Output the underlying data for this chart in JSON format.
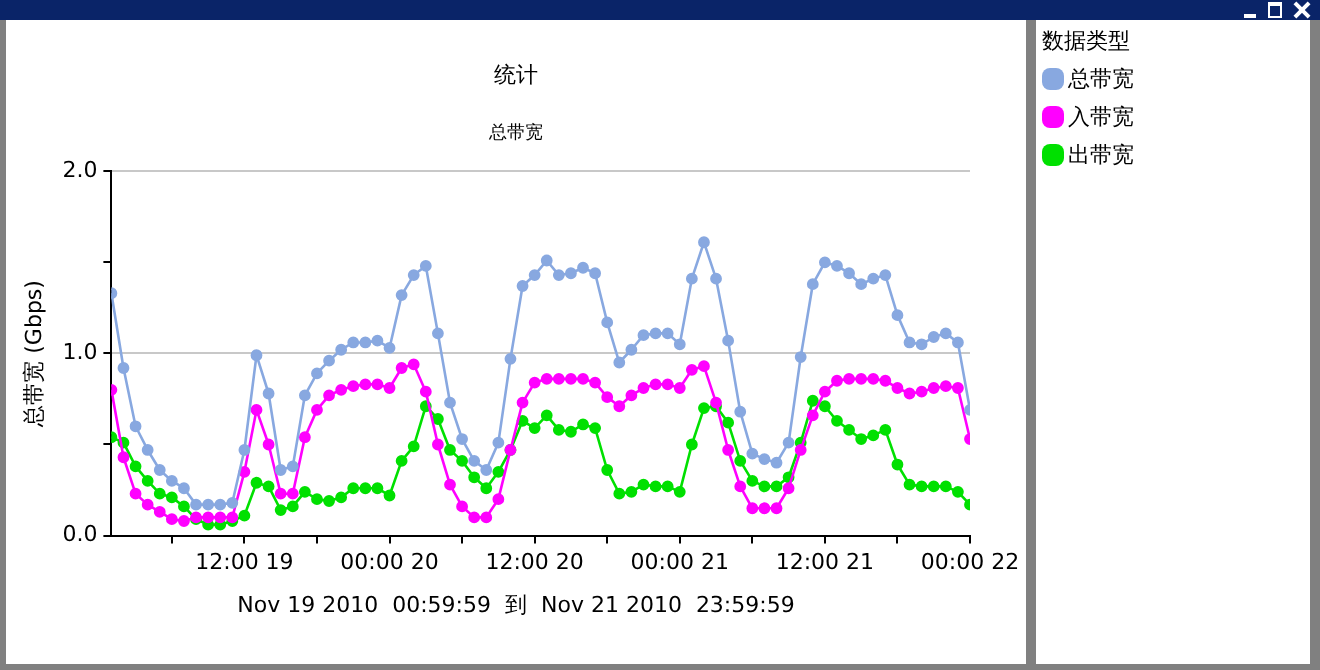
{
  "chart_data": {
    "type": "line",
    "title": "统计",
    "subtitle": "总带宽",
    "ylabel": "总带宽 (Gbps)",
    "xlabel": "Nov 19 2010  00:59:59  到  Nov 21 2010  23:59:59",
    "legend_title": "数据类型",
    "legend": "right",
    "grid": "y",
    "marker": "circle",
    "line_style": "solid",
    "xlim": [
      "2010-11-19T01:00",
      "2010-11-22T00:00"
    ],
    "xticks": [
      {
        "value": "2010-11-19T06:00",
        "label": null
      },
      {
        "value": "2010-11-19T12:00",
        "label": "12:00 19"
      },
      {
        "value": "2010-11-19T18:00",
        "label": null
      },
      {
        "value": "2010-11-20T00:00",
        "label": "00:00 20"
      },
      {
        "value": "2010-11-20T06:00",
        "label": null
      },
      {
        "value": "2010-11-20T12:00",
        "label": "12:00 20"
      },
      {
        "value": "2010-11-20T18:00",
        "label": null
      },
      {
        "value": "2010-11-21T00:00",
        "label": "00:00 21"
      },
      {
        "value": "2010-11-21T06:00",
        "label": null
      },
      {
        "value": "2010-11-21T12:00",
        "label": "12:00 21"
      },
      {
        "value": "2010-11-21T18:00",
        "label": null
      },
      {
        "value": "2010-11-22T00:00",
        "label": "00:00 22"
      }
    ],
    "ylim": [
      0,
      2
    ],
    "yticks": [
      {
        "value": 0,
        "label": "0.0"
      },
      {
        "value": 0.5,
        "label": null
      },
      {
        "value": 1,
        "label": "1.0"
      },
      {
        "value": 1.5,
        "label": null
      },
      {
        "value": 2,
        "label": "2.0"
      }
    ],
    "x": [
      "2010-11-19T01:00",
      "2010-11-19T02:00",
      "2010-11-19T03:00",
      "2010-11-19T04:00",
      "2010-11-19T05:00",
      "2010-11-19T06:00",
      "2010-11-19T07:00",
      "2010-11-19T08:00",
      "2010-11-19T09:00",
      "2010-11-19T10:00",
      "2010-11-19T11:00",
      "2010-11-19T12:00",
      "2010-11-19T13:00",
      "2010-11-19T14:00",
      "2010-11-19T15:00",
      "2010-11-19T16:00",
      "2010-11-19T17:00",
      "2010-11-19T18:00",
      "2010-11-19T19:00",
      "2010-11-19T20:00",
      "2010-11-19T21:00",
      "2010-11-19T22:00",
      "2010-11-19T23:00",
      "2010-11-20T00:00",
      "2010-11-20T01:00",
      "2010-11-20T02:00",
      "2010-11-20T03:00",
      "2010-11-20T04:00",
      "2010-11-20T05:00",
      "2010-11-20T06:00",
      "2010-11-20T07:00",
      "2010-11-20T08:00",
      "2010-11-20T09:00",
      "2010-11-20T10:00",
      "2010-11-20T11:00",
      "2010-11-20T12:00",
      "2010-11-20T13:00",
      "2010-11-20T14:00",
      "2010-11-20T15:00",
      "2010-11-20T16:00",
      "2010-11-20T17:00",
      "2010-11-20T18:00",
      "2010-11-20T19:00",
      "2010-11-20T20:00",
      "2010-11-20T21:00",
      "2010-11-20T22:00",
      "2010-11-20T23:00",
      "2010-11-21T00:00",
      "2010-11-21T01:00",
      "2010-11-21T02:00",
      "2010-11-21T03:00",
      "2010-11-21T04:00",
      "2010-11-21T05:00",
      "2010-11-21T06:00",
      "2010-11-21T07:00",
      "2010-11-21T08:00",
      "2010-11-21T09:00",
      "2010-11-21T10:00",
      "2010-11-21T11:00",
      "2010-11-21T12:00",
      "2010-11-21T13:00",
      "2010-11-21T14:00",
      "2010-11-21T15:00",
      "2010-11-21T16:00",
      "2010-11-21T17:00",
      "2010-11-21T18:00",
      "2010-11-21T19:00",
      "2010-11-21T20:00",
      "2010-11-21T21:00",
      "2010-11-21T22:00",
      "2010-11-21T23:00",
      "2010-11-22T00:00"
    ],
    "series": [
      {
        "name": "总带宽",
        "color": "#88a8e0",
        "values": [
          1.33,
          0.92,
          0.6,
          0.47,
          0.36,
          0.3,
          0.26,
          0.17,
          0.17,
          0.17,
          0.18,
          0.47,
          0.99,
          0.78,
          0.36,
          0.38,
          0.77,
          0.89,
          0.96,
          1.02,
          1.06,
          1.06,
          1.07,
          1.03,
          1.32,
          1.43,
          1.48,
          1.11,
          0.73,
          0.53,
          0.41,
          0.36,
          0.51,
          0.97,
          1.37,
          1.43,
          1.51,
          1.43,
          1.44,
          1.47,
          1.44,
          1.17,
          0.95,
          1.02,
          1.1,
          1.11,
          1.11,
          1.05,
          1.41,
          1.61,
          1.41,
          1.07,
          0.68,
          0.45,
          0.42,
          0.4,
          0.51,
          0.98,
          1.38,
          1.5,
          1.48,
          1.44,
          1.38,
          1.41,
          1.43,
          1.21,
          1.06,
          1.05,
          1.09,
          1.11,
          1.06,
          0.69
        ]
      },
      {
        "name": "入带宽",
        "color": "#ff00ff",
        "values": [
          0.8,
          0.43,
          0.23,
          0.17,
          0.13,
          0.09,
          0.08,
          0.1,
          0.1,
          0.1,
          0.1,
          0.35,
          0.69,
          0.5,
          0.23,
          0.23,
          0.54,
          0.69,
          0.77,
          0.8,
          0.82,
          0.83,
          0.83,
          0.81,
          0.92,
          0.94,
          0.79,
          0.5,
          0.28,
          0.16,
          0.1,
          0.1,
          0.2,
          0.47,
          0.73,
          0.84,
          0.86,
          0.86,
          0.86,
          0.86,
          0.84,
          0.76,
          0.71,
          0.77,
          0.81,
          0.83,
          0.83,
          0.81,
          0.91,
          0.93,
          0.73,
          0.47,
          0.27,
          0.15,
          0.15,
          0.15,
          0.26,
          0.47,
          0.66,
          0.79,
          0.85,
          0.86,
          0.86,
          0.86,
          0.85,
          0.81,
          0.78,
          0.79,
          0.81,
          0.82,
          0.81,
          0.53
        ]
      },
      {
        "name": "出带宽",
        "color": "#00e000",
        "values": [
          0.54,
          0.51,
          0.38,
          0.3,
          0.23,
          0.21,
          0.16,
          0.09,
          0.06,
          0.06,
          0.08,
          0.11,
          0.29,
          0.27,
          0.14,
          0.16,
          0.24,
          0.2,
          0.19,
          0.21,
          0.26,
          0.26,
          0.26,
          0.22,
          0.41,
          0.49,
          0.71,
          0.64,
          0.47,
          0.41,
          0.32,
          0.26,
          0.35,
          0.47,
          0.63,
          0.59,
          0.66,
          0.58,
          0.57,
          0.61,
          0.59,
          0.36,
          0.23,
          0.24,
          0.28,
          0.27,
          0.27,
          0.24,
          0.5,
          0.7,
          0.71,
          0.62,
          0.41,
          0.3,
          0.27,
          0.27,
          0.32,
          0.51,
          0.74,
          0.71,
          0.63,
          0.58,
          0.53,
          0.55,
          0.58,
          0.39,
          0.28,
          0.27,
          0.27,
          0.27,
          0.24,
          0.17
        ]
      }
    ]
  }
}
